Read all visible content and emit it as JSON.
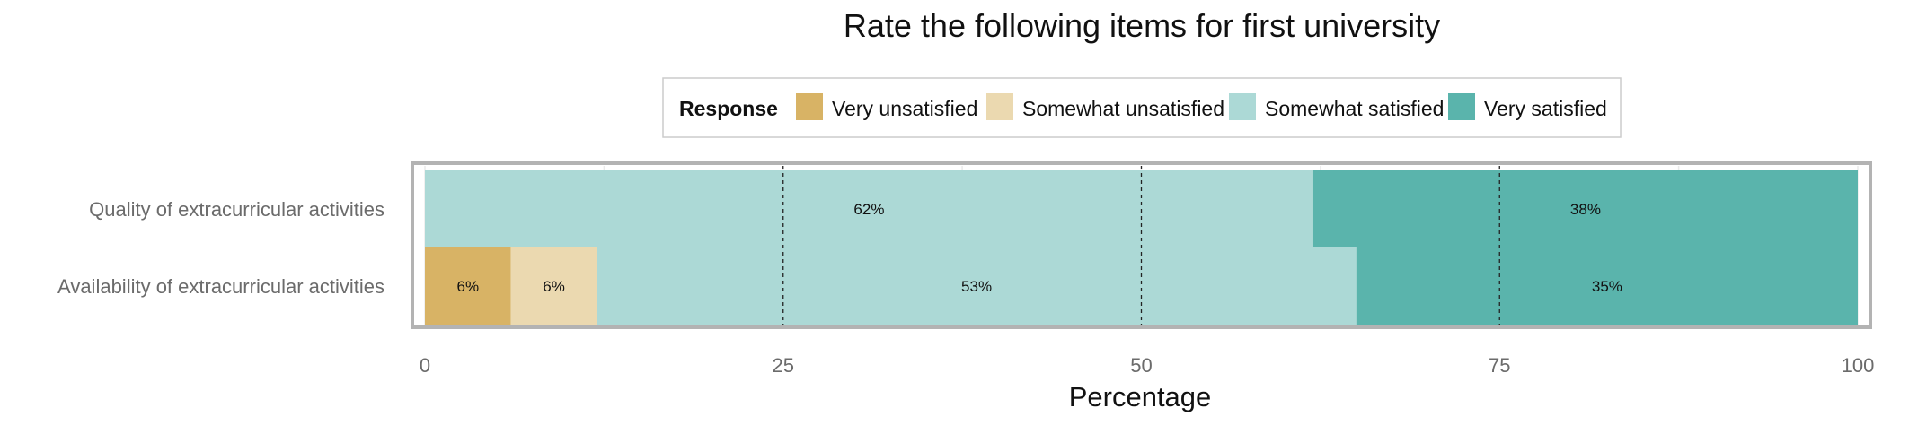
{
  "chart_data": {
    "type": "bar",
    "orientation": "horizontal",
    "stacked": true,
    "title": "Rate the following items for first university",
    "xlabel": "Percentage",
    "ylabel": "",
    "xlim": [
      0,
      100
    ],
    "x_ticks": [
      0,
      25,
      50,
      75,
      100
    ],
    "reference_lines": [
      25,
      50,
      75
    ],
    "grid": true,
    "legend": {
      "title": "Response",
      "placement": "top",
      "entries": [
        "Very unsatisfied",
        "Somewhat unsatisfied",
        "Somewhat satisfied",
        "Very satisfied"
      ]
    },
    "categories": [
      "Quality of extracurricular activities",
      "Availability of extracurricular activities"
    ],
    "series": [
      {
        "name": "Very unsatisfied",
        "color": "#d8b365",
        "values": [
          0,
          6
        ],
        "labels": [
          "",
          "6%"
        ]
      },
      {
        "name": "Somewhat unsatisfied",
        "color": "#ebd9b0",
        "values": [
          0,
          6
        ],
        "labels": [
          "",
          "6%"
        ]
      },
      {
        "name": "Somewhat satisfied",
        "color": "#acd9d6",
        "values": [
          62,
          53
        ],
        "labels": [
          "62%",
          "53%"
        ]
      },
      {
        "name": "Very satisfied",
        "color": "#5ab4ac",
        "values": [
          38,
          35
        ],
        "labels": [
          "38%",
          "35%"
        ]
      }
    ]
  }
}
